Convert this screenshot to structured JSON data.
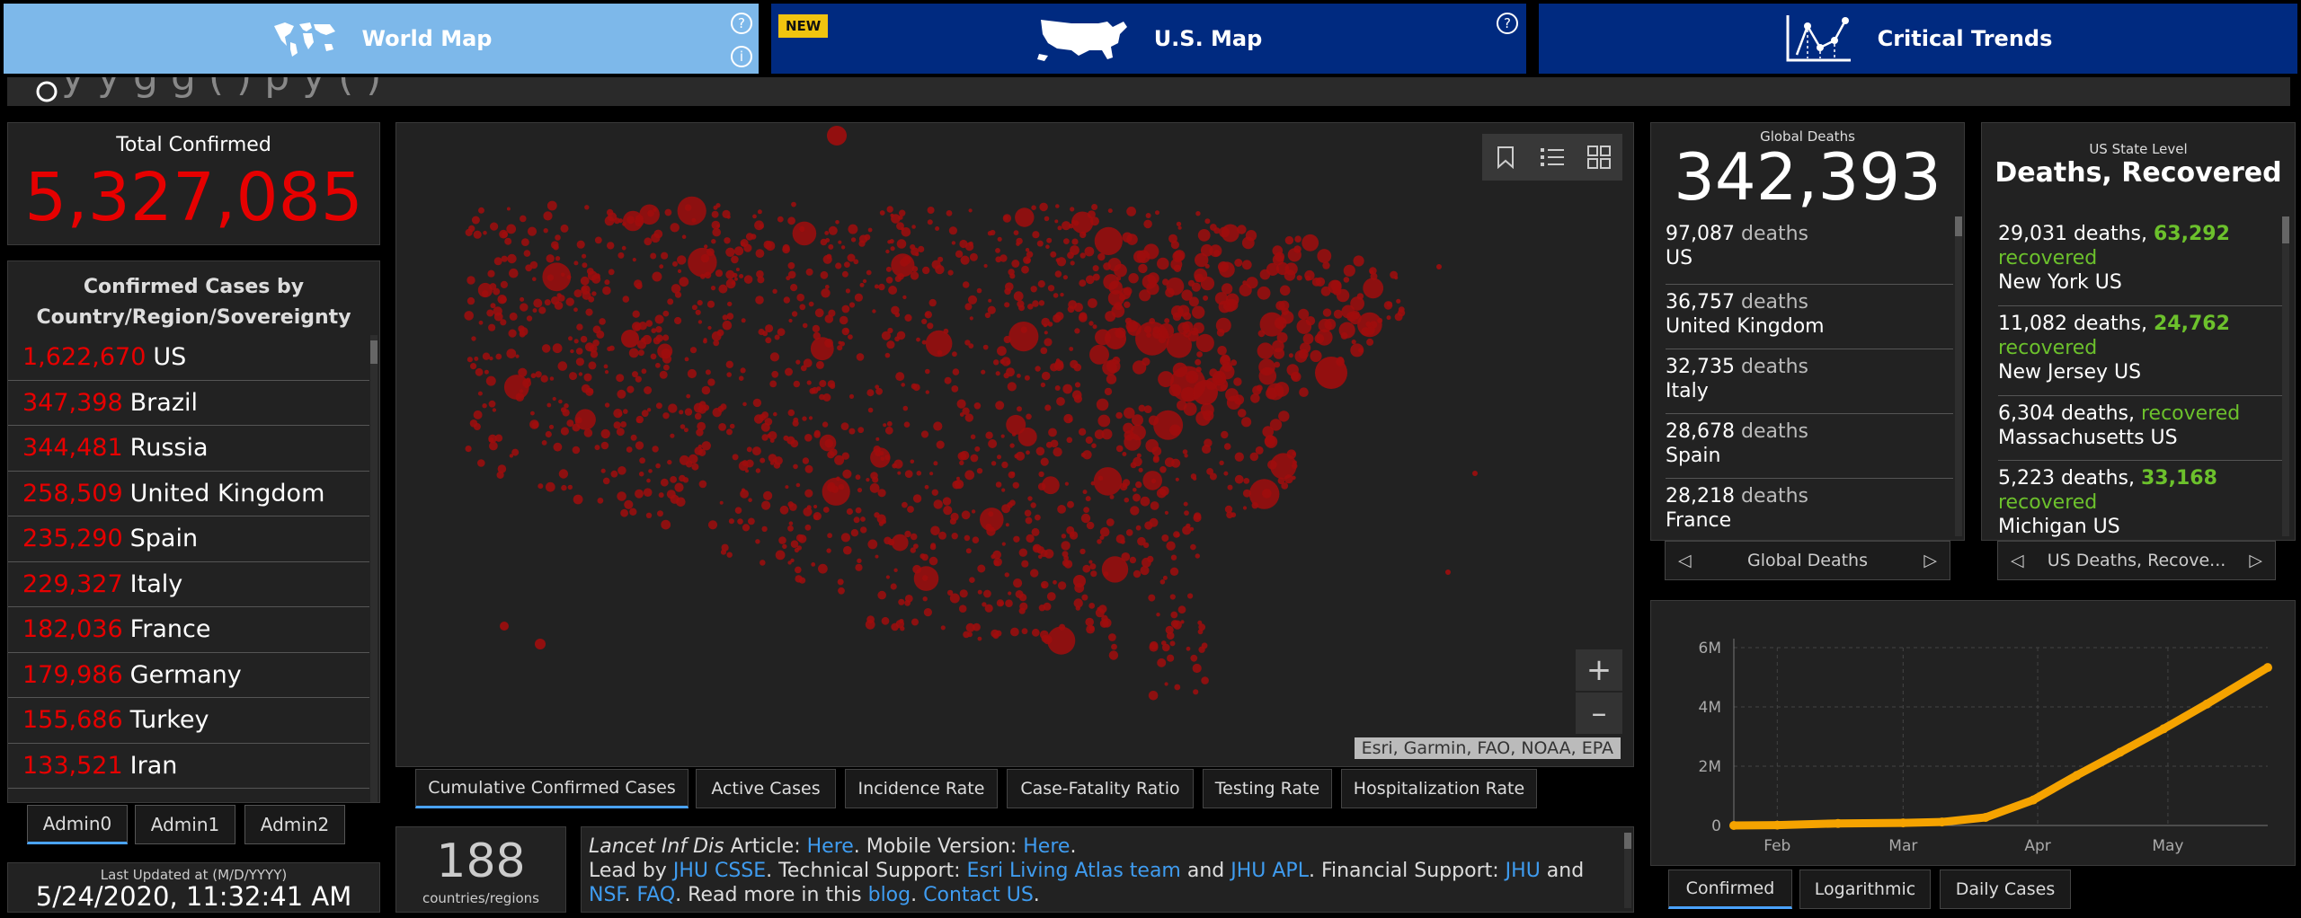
{
  "nav": {
    "world_label": "World Map",
    "us_label": "U.S. Map",
    "trends_label": "Critical Trends",
    "new_badge": "NEW",
    "help_glyph": "?",
    "info_glyph": "i"
  },
  "title_strip": {
    "text": "y y g g ( ) p y ( )"
  },
  "total_confirmed": {
    "label": "Total Confirmed",
    "value": "5,327,085"
  },
  "country_list": {
    "header": "Confirmed Cases by Country/Region/Sovereignty",
    "items": [
      {
        "count": "1,622,670",
        "name": "US"
      },
      {
        "count": "347,398",
        "name": "Brazil"
      },
      {
        "count": "344,481",
        "name": "Russia"
      },
      {
        "count": "258,509",
        "name": "United Kingdom"
      },
      {
        "count": "235,290",
        "name": "Spain"
      },
      {
        "count": "229,327",
        "name": "Italy"
      },
      {
        "count": "182,036",
        "name": "France"
      },
      {
        "count": "179,986",
        "name": "Germany"
      },
      {
        "count": "155,686",
        "name": "Turkey"
      },
      {
        "count": "133,521",
        "name": "Iran"
      }
    ]
  },
  "admin_tabs": [
    "Admin0",
    "Admin1",
    "Admin2"
  ],
  "last_updated": {
    "label": "Last Updated at (M/D/YYYY)",
    "value": "5/24/2020, 11:32:41 AM"
  },
  "map": {
    "attribution": "Esri, Garmin, FAO, NOAA, EPA",
    "zoom_in": "+",
    "zoom_out": "–",
    "tabs": [
      "Cumulative Confirmed Cases",
      "Active Cases",
      "Incidence Rate",
      "Case-Fatality Ratio",
      "Testing Rate",
      "Hospitalization Rate"
    ],
    "dot_color": "#a00d0d"
  },
  "countries_count": {
    "value": "188",
    "label": "countries/regions"
  },
  "info": {
    "journal": "Lancet Inf Dis",
    "t_article": " Article: ",
    "here1": "Here",
    "t_mobile": ". Mobile Version: ",
    "here2": "Here",
    "t_dot1": ".",
    "t_lead": "Lead by ",
    "jhu_csse": "JHU CSSE",
    "t_tech": ". Technical Support: ",
    "esri_team": "Esri Living Atlas team",
    "t_and1": " and ",
    "jhu_apl": "JHU APL",
    "t_fin": ". Financial Support: ",
    "jhu": "JHU",
    "t_and2": " and",
    "nsf": "NSF",
    "t_dot2": ". ",
    "faq": "FAQ",
    "t_read": ". Read more in this ",
    "blog": "blog",
    "t_dot3": ". ",
    "contact": "Contact US",
    "t_dot4": "."
  },
  "global_deaths": {
    "label": "Global Deaths",
    "value": "342,393",
    "items": [
      {
        "count": "97,087",
        "unit": "deaths",
        "place": "US"
      },
      {
        "count": "36,757",
        "unit": "deaths",
        "place": "United Kingdom"
      },
      {
        "count": "32,735",
        "unit": "deaths",
        "place": "Italy"
      },
      {
        "count": "28,678",
        "unit": "deaths",
        "place": "Spain"
      },
      {
        "count": "28,218",
        "unit": "deaths",
        "place": "France"
      }
    ],
    "nav_label": "Global Deaths"
  },
  "us_deaths": {
    "label": "US State Level",
    "title": "Deaths, Recovered",
    "items": [
      {
        "deaths": "29,031 deaths,",
        "recovered_num": "63,292",
        "recovered_word": "recovered",
        "place": "New York US"
      },
      {
        "deaths": "11,082 deaths,",
        "recovered_num": "24,762",
        "recovered_word": "recovered",
        "place": "New Jersey US"
      },
      {
        "deaths": "6,304 deaths,",
        "recovered_num": "",
        "recovered_word": "recovered",
        "place": "Massachusetts US"
      },
      {
        "deaths": "5,223 deaths,",
        "recovered_num": "33,168",
        "recovered_word": "recovered",
        "place": "Michigan US"
      }
    ],
    "nav_label": "US Deaths, Recove..."
  },
  "chart_data": {
    "type": "line",
    "title": "",
    "xlabel": "",
    "ylabel": "",
    "x_tick_labels": [
      "Feb",
      "Mar",
      "Apr",
      "May"
    ],
    "y_tick_labels": [
      "0",
      "2M",
      "4M",
      "6M"
    ],
    "ylim": [
      0,
      6000000
    ],
    "xlim": [
      "2020-01-22",
      "2020-05-24"
    ],
    "grid": true,
    "color": "#f5a300",
    "x": [
      "2020-01-22",
      "2020-02-01",
      "2020-02-15",
      "2020-03-01",
      "2020-03-10",
      "2020-03-20",
      "2020-03-31",
      "2020-04-10",
      "2020-04-20",
      "2020-04-30",
      "2020-05-10",
      "2020-05-24"
    ],
    "values": [
      600,
      12000,
      69000,
      88000,
      119000,
      272000,
      860000,
      1690000,
      2470000,
      3260000,
      4100000,
      5330000
    ]
  },
  "chart_tabs": [
    "Confirmed",
    "Logarithmic",
    "Daily Cases"
  ]
}
